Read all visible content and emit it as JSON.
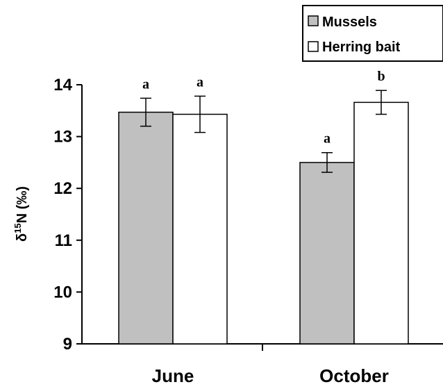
{
  "chart_data": {
    "type": "bar",
    "categories": [
      "June",
      "October"
    ],
    "series": [
      {
        "name": "Mussels",
        "color": "#c0c0c0",
        "values": [
          13.47,
          12.5
        ],
        "errors": [
          0.27,
          0.19
        ],
        "sig_letters": [
          "a",
          "a"
        ]
      },
      {
        "name": "Herring bait",
        "color": "#ffffff",
        "values": [
          13.43,
          13.66
        ],
        "errors": [
          0.35,
          0.23
        ],
        "sig_letters": [
          "a",
          "b"
        ]
      }
    ],
    "ylabel": {
      "prefix": "δ",
      "sup": "15",
      "suffix": "N (‰)"
    },
    "ylim": [
      9,
      14
    ],
    "yticks": [
      "9",
      "10",
      "11",
      "12",
      "13",
      "14"
    ],
    "legend_position": "top-right",
    "grid": false
  }
}
